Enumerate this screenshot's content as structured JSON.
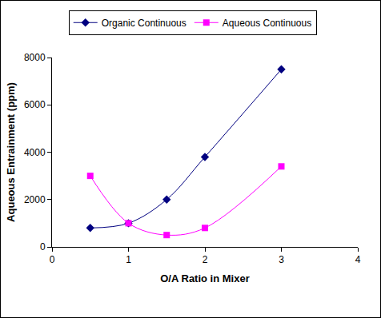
{
  "chart_data": {
    "type": "line",
    "x_label": "O/A Ratio in Mixer",
    "y_label": "Aqueous Entrainment (ppm)",
    "x": [
      0.5,
      1,
      1.5,
      2,
      3
    ],
    "series": [
      {
        "name": "Organic Continuous",
        "color": "#000080",
        "marker": "diamond",
        "line_style": "smooth",
        "values": [
          800,
          1000,
          2000,
          3800,
          7500
        ]
      },
      {
        "name": "Aqueous Continuous",
        "color": "#ff00ff",
        "marker": "square",
        "line_style": "smooth",
        "values": [
          3000,
          1000,
          500,
          800,
          3400
        ]
      }
    ],
    "xlim": [
      0,
      4
    ],
    "xticks": [
      0,
      1,
      2,
      3,
      4
    ],
    "ylim": [
      0,
      8000
    ],
    "yticks": [
      0,
      2000,
      4000,
      6000,
      8000
    ],
    "grid": false,
    "legend": "top"
  }
}
